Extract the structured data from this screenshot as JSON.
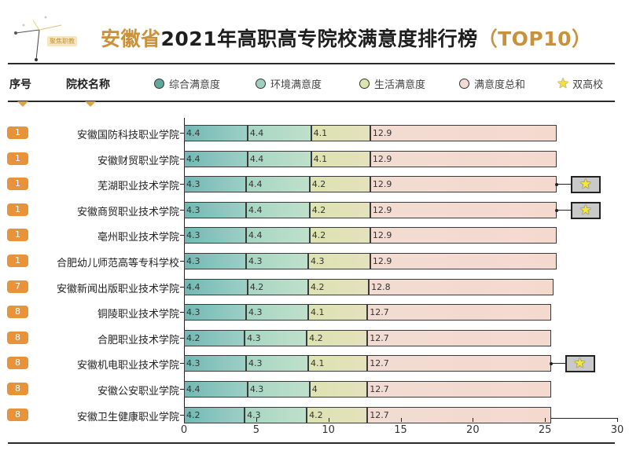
{
  "header": {
    "logo_text": "聚焦职教",
    "title_prefix": "安徽省",
    "title_main": "2021年高职高专院校满意度排行榜",
    "title_suffix": "（TOP10）"
  },
  "columns": {
    "rank_header": "序号",
    "name_header": "院校名称"
  },
  "legend": [
    {
      "label": "综合满意度",
      "color": "#74b9b4",
      "icon": "circle-icon"
    },
    {
      "label": "环境满意度",
      "color": "#a6d6c3",
      "icon": "circle-icon"
    },
    {
      "label": "生活满意度",
      "color": "#dde3b1",
      "icon": "circle-icon"
    },
    {
      "label": "满意度总和",
      "color": "#f2dcd2",
      "icon": "circle-icon"
    },
    {
      "label": "双高校",
      "color": "#f4e63c",
      "icon": "star-icon"
    }
  ],
  "chart_data": {
    "type": "bar",
    "orientation": "horizontal",
    "stacked": true,
    "title": "安徽省2021年高职高专院校满意度排行榜（TOP10）",
    "xlabel": "",
    "ylabel": "院校名称",
    "xlim": [
      0,
      30
    ],
    "xticks": [
      0,
      5,
      10,
      15,
      20,
      25,
      30
    ],
    "grid": false,
    "legend_position": "top",
    "categories": [
      "安徽国防科技职业学院",
      "安徽财贸职业学院",
      "芜湖职业技术学院",
      "安徽商贸职业技术学院",
      "亳州职业技术学院",
      "合肥幼儿师范高等专科学校",
      "安徽新闻出版职业技术学院",
      "铜陵职业技术学院",
      "合肥职业技术学院",
      "安徽机电职业技术学院",
      "安徽公安职业学院",
      "安徽卫生健康职业学院"
    ],
    "ranks": [
      "1",
      "1",
      "1",
      "1",
      "1",
      "1",
      "7",
      "8",
      "8",
      "8",
      "8",
      "8"
    ],
    "series": [
      {
        "name": "综合满意度",
        "values": [
          4.4,
          4.4,
          4.3,
          4.3,
          4.3,
          4.3,
          4.4,
          4.3,
          4.2,
          4.3,
          4.4,
          4.2
        ]
      },
      {
        "name": "环境满意度",
        "values": [
          4.4,
          4.4,
          4.4,
          4.4,
          4.4,
          4.3,
          4.2,
          4.3,
          4.3,
          4.3,
          4.3,
          4.3
        ]
      },
      {
        "name": "生活满意度",
        "values": [
          4.1,
          4.1,
          4.2,
          4.2,
          4.2,
          4.3,
          4.2,
          4.1,
          4.2,
          4.1,
          4,
          4.2
        ]
      },
      {
        "name": "满意度总和",
        "values": [
          12.9,
          12.9,
          12.9,
          12.9,
          12.9,
          12.9,
          12.8,
          12.7,
          12.7,
          12.7,
          12.7,
          12.7
        ]
      }
    ],
    "double_high_school": [
      false,
      false,
      true,
      true,
      false,
      false,
      false,
      false,
      false,
      true,
      false,
      false
    ],
    "annotations": [
      "★ 双高校 markers on 芜湖职业技术学院, 安徽商贸职业技术学院, 安徽机电职业技术学院"
    ]
  }
}
